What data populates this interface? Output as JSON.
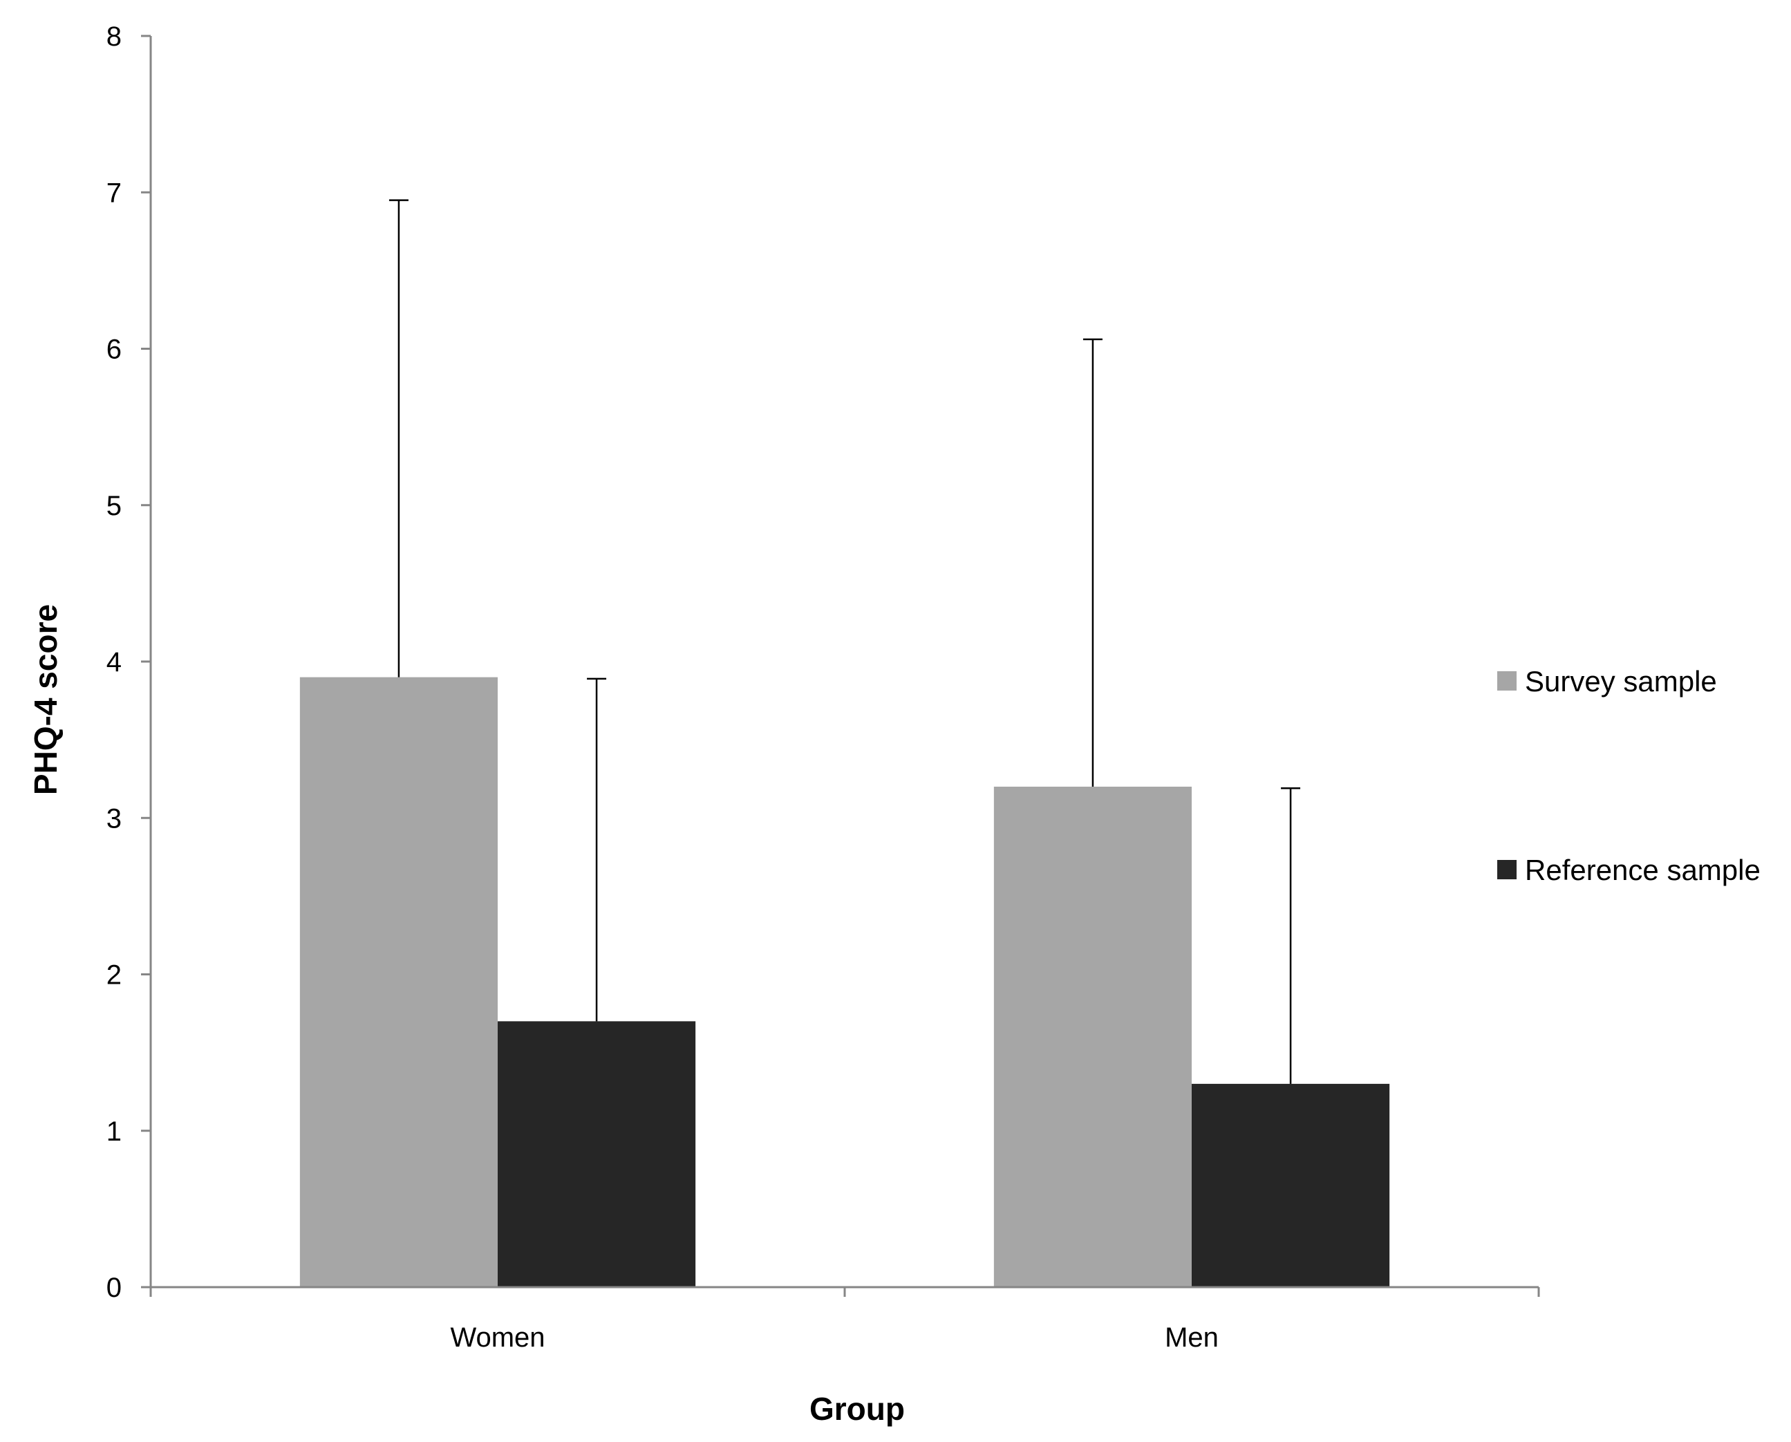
{
  "chart_data": {
    "type": "bar",
    "title": "",
    "xlabel": "Group",
    "ylabel": "PHQ-4 score",
    "categories": [
      "Women",
      "Men"
    ],
    "ylim": [
      0,
      8
    ],
    "yticks": [
      "0",
      "1",
      "2",
      "3",
      "4",
      "5",
      "6",
      "7",
      "8"
    ],
    "grid": false,
    "legend_position": "right",
    "series": [
      {
        "name": "Survey sample",
        "color": "#a6a6a6",
        "values": [
          3.9,
          3.2
        ],
        "error": [
          3.05,
          2.86
        ]
      },
      {
        "name": "Reference sample",
        "color": "#262626",
        "values": [
          1.7,
          1.3
        ],
        "error": [
          2.19,
          1.89
        ]
      }
    ]
  }
}
